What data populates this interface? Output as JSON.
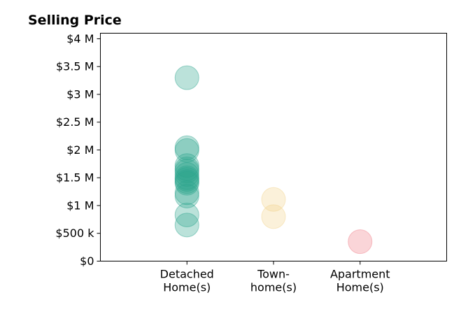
{
  "chart_data": {
    "type": "scatter",
    "title": "Selling Price",
    "xlabel": "",
    "ylabel": "",
    "categories": [
      {
        "lines": [
          "Detached",
          "Home(s)"
        ]
      },
      {
        "lines": [
          "Town-",
          "home(s)"
        ]
      },
      {
        "lines": [
          "Apartment",
          "Home(s)"
        ]
      }
    ],
    "xlim": [
      0,
      4
    ],
    "ylim": [
      0,
      4100000
    ],
    "y_ticks": [
      {
        "value": 0,
        "label": "$0"
      },
      {
        "value": 500000,
        "label": "$500 k"
      },
      {
        "value": 1000000,
        "label": "$1 M"
      },
      {
        "value": 1500000,
        "label": "$1.5 M"
      },
      {
        "value": 2000000,
        "label": "$2 M"
      },
      {
        "value": 2500000,
        "label": "$2.5 M"
      },
      {
        "value": 3000000,
        "label": "$3 M"
      },
      {
        "value": 3500000,
        "label": "$3.5 M"
      },
      {
        "value": 4000000,
        "label": "$4 M"
      }
    ],
    "grid": false,
    "legend": "none",
    "series": [
      {
        "category": 1,
        "color": "#2ca58d",
        "values": [
          3300000,
          2040000,
          1990000,
          1720000,
          1660000,
          1620000,
          1560000,
          1500000,
          1470000,
          1430000,
          1400000,
          1230000,
          1170000,
          830000,
          650000
        ]
      },
      {
        "category": 2,
        "color": "#f2d38c",
        "values": [
          1110000,
          800000
        ]
      },
      {
        "category": 3,
        "color": "#f07c87",
        "values": [
          350000
        ]
      }
    ]
  }
}
